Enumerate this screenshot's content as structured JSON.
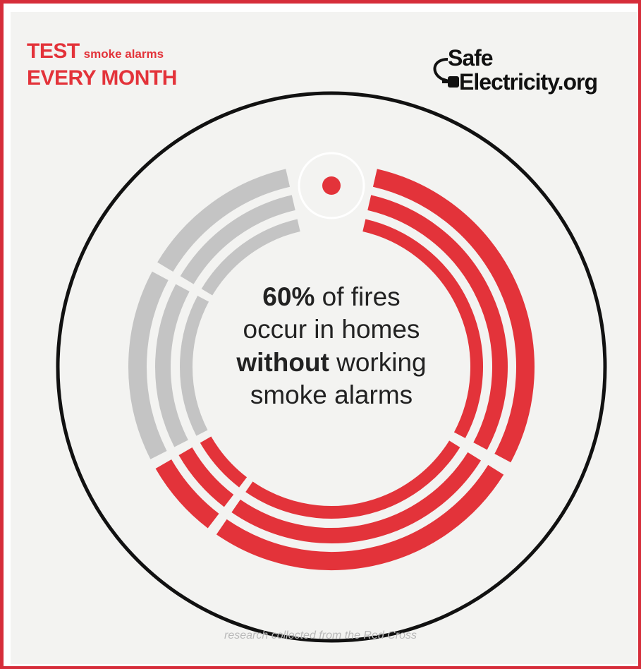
{
  "headline": {
    "test": "TEST",
    "smoke_alarms": "smoke alarms",
    "every_month": "EVERY MONTH"
  },
  "logo": {
    "safe": "Safe",
    "electricity": "Electricity.org"
  },
  "stat": {
    "percent": "60%",
    "line1_rest": " of fires",
    "line2": "occur in homes",
    "without": "without",
    "line3_rest": " working",
    "line4": "smoke alarms",
    "value_percent": 60
  },
  "footer": "research collected from the Red Cross",
  "colors": {
    "frame": "#d62d3a",
    "accent_red": "#e3333a",
    "gray_segment": "#c4c4c4",
    "background": "#f3f3f1"
  }
}
